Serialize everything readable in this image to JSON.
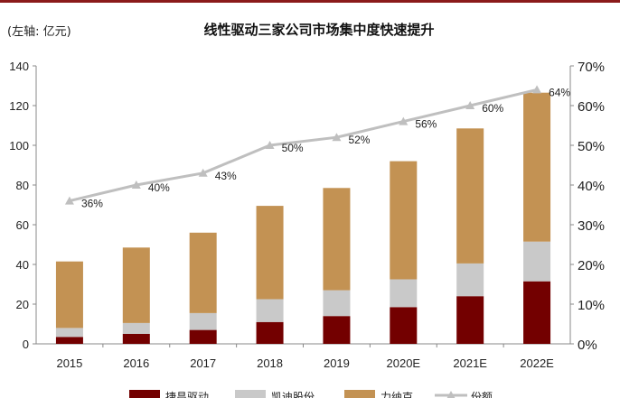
{
  "header": {
    "unit_label": "(左轴: 亿元)",
    "title": "线性驱动三家公司市场集中度快速提升"
  },
  "colors": {
    "accent_line": "#8b1a1a",
    "series1": "#730000",
    "series2": "#c9c9c9",
    "series3": "#c39253",
    "share_line": "#bfbfbf"
  },
  "chart_data": {
    "type": "bar",
    "stacked": true,
    "categories": [
      "2015",
      "2016",
      "2017",
      "2018",
      "2019",
      "2020E",
      "2021E",
      "2022E"
    ],
    "series": [
      {
        "name": "捷昌驱动",
        "values": [
          3.5,
          5,
          7,
          11,
          14,
          18.5,
          24,
          31.5
        ]
      },
      {
        "name": "凯迪股份",
        "values": [
          4.5,
          5.5,
          8.5,
          11.5,
          13,
          14,
          16.5,
          20
        ]
      },
      {
        "name": "力纳克",
        "values": [
          33.5,
          38,
          40.5,
          47,
          51.5,
          59.5,
          68,
          75
        ]
      }
    ],
    "line_series": {
      "name": "份额",
      "axis": "right",
      "values": [
        36,
        40,
        43,
        50,
        52,
        56,
        60,
        64
      ],
      "labels": [
        "36%",
        "40%",
        "43%",
        "50%",
        "52%",
        "56%",
        "60%",
        "64%"
      ]
    },
    "y_left": {
      "min": 0,
      "max": 140,
      "ticks": [
        "0",
        "20",
        "40",
        "60",
        "80",
        "100",
        "120",
        "140"
      ]
    },
    "y_right": {
      "min": 0,
      "max": 70,
      "ticks": [
        "0%",
        "10%",
        "20%",
        "30%",
        "40%",
        "50%",
        "60%",
        "70%"
      ]
    },
    "legend_position": "bottom",
    "grid": false
  }
}
